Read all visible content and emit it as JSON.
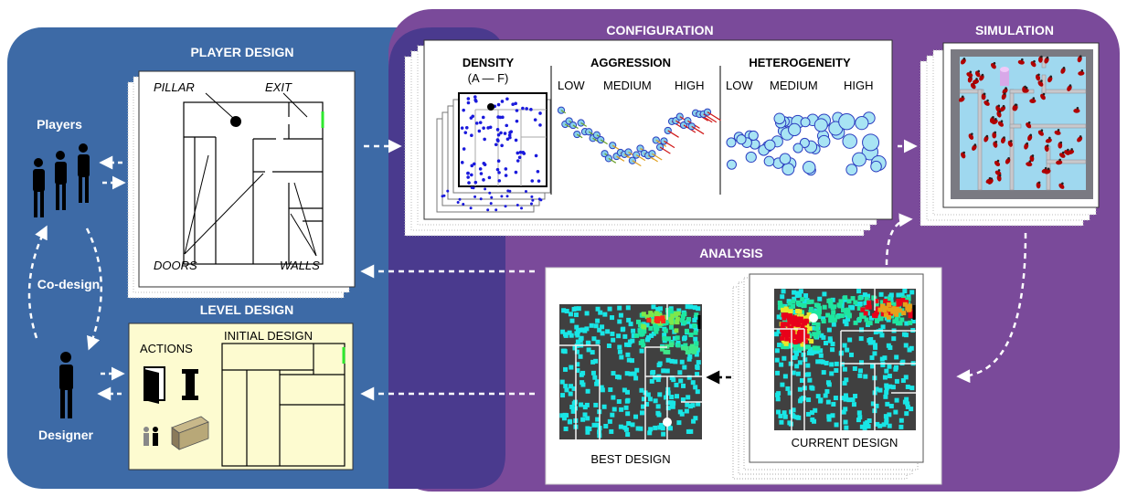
{
  "sections": {
    "player_design": "PLAYER DESIGN",
    "configuration": "CONFIGURATION",
    "simulation": "SIMULATION",
    "analysis": "ANALYSIS",
    "level_design": "LEVEL DESIGN"
  },
  "actors": {
    "players": "Players",
    "designer": "Designer",
    "codesign": "Co-design"
  },
  "player_design": {
    "pillar": "PILLAR",
    "exit": "EXIT",
    "doors": "DOORS",
    "walls": "WALLS"
  },
  "configuration": {
    "density": "DENSITY",
    "density_range": "(A — F)",
    "aggression": "AGGRESSION",
    "heterogeneity": "HETEROGENEITY",
    "low": "LOW",
    "medium": "MEDIUM",
    "high": "HIGH"
  },
  "level_design": {
    "actions": "ACTIONS",
    "initial_design": "INITIAL DESIGN"
  },
  "analysis": {
    "best_design": "BEST DESIGN",
    "current_design": "CURRENT DESIGN"
  },
  "colors": {
    "blue_panel": "#3d6aa6",
    "purple_panel": "#7a4a9a",
    "overlap": "#4a3a8e",
    "agent_blue": "#87ceeb",
    "heat_cyan": "#19e6e6",
    "heat_red": "#e8001a",
    "exit_green": "#2ee82e"
  }
}
